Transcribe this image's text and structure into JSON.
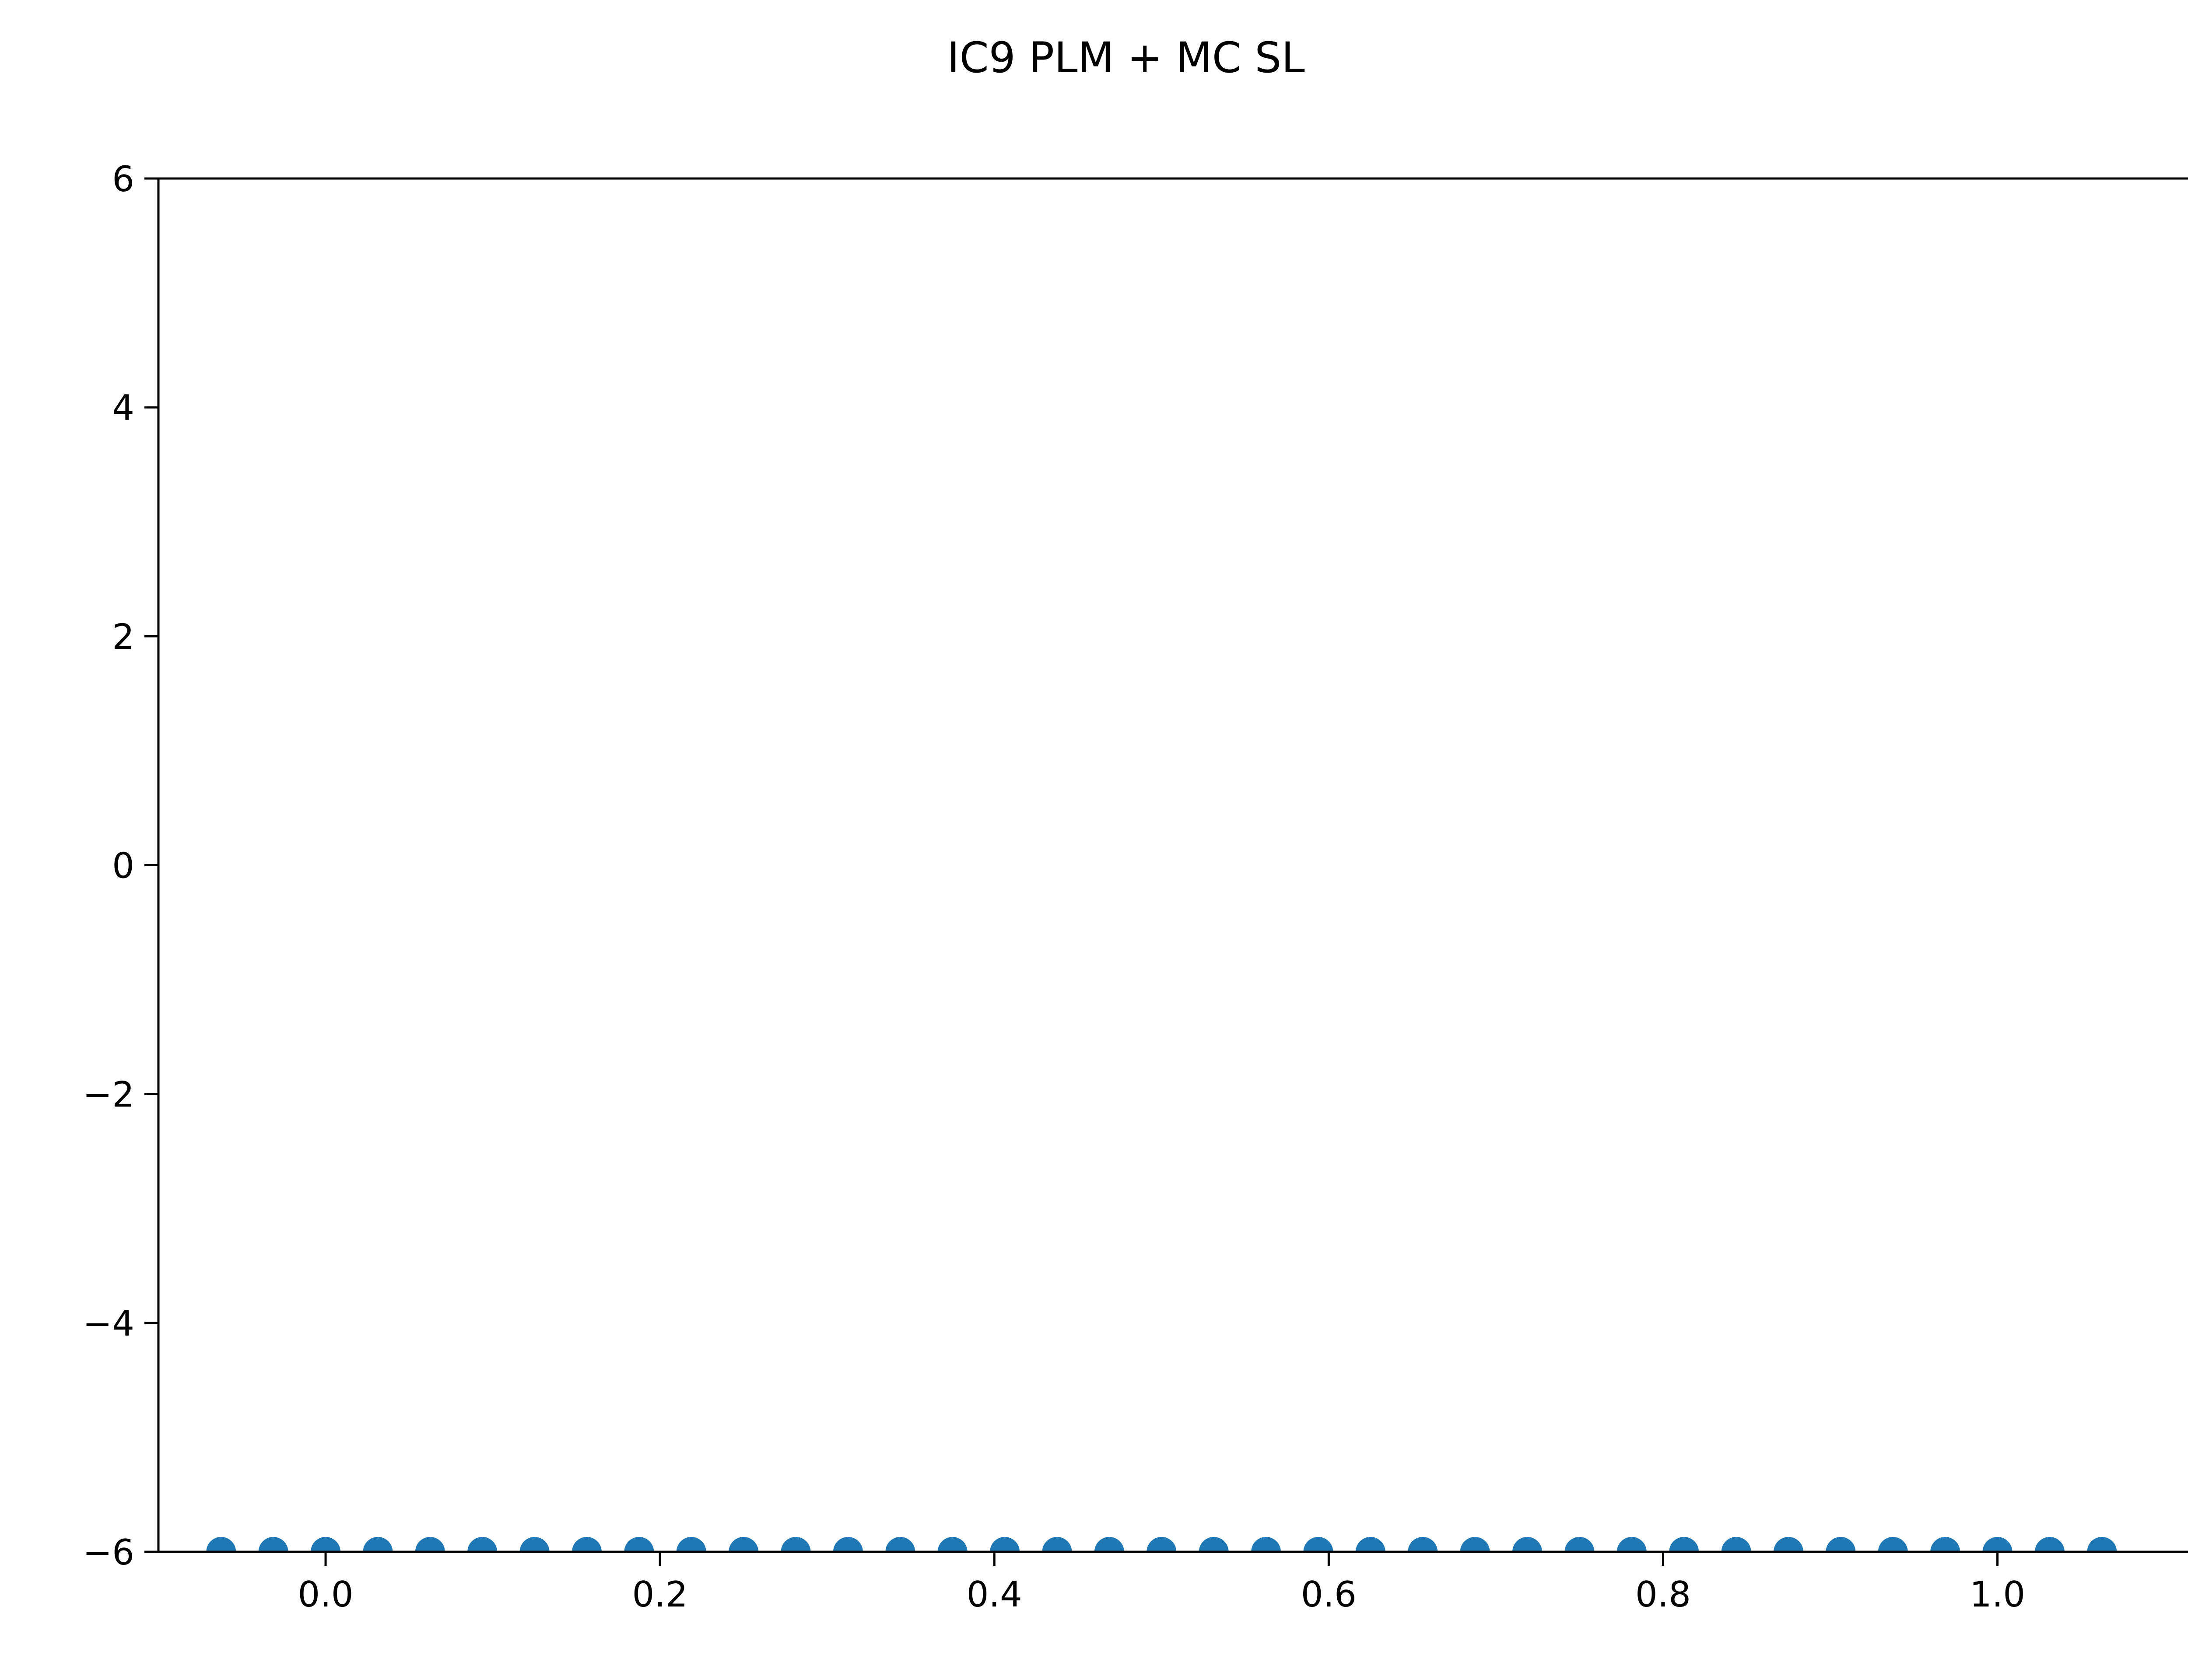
{
  "chart_data": {
    "type": "scatter",
    "title": "IC9 PLM + MC SL",
    "xlabel": "",
    "ylabel": "",
    "xlim": [
      -0.1,
      1.12
    ],
    "ylim": [
      -6,
      6
    ],
    "xticks": [
      0.0,
      0.2,
      0.4,
      0.6,
      0.8,
      1.0
    ],
    "xtick_labels": [
      "0.0",
      "0.2",
      "0.4",
      "0.6",
      "0.8",
      "1.0"
    ],
    "yticks": [
      -6,
      -4,
      -2,
      0,
      2,
      4,
      6
    ],
    "ytick_labels": [
      "−6",
      "−4",
      "−2",
      "0",
      "2",
      "4",
      "6"
    ],
    "grid": false,
    "legend": "none",
    "series": [
      {
        "name": "points",
        "color": "#1f77b4",
        "x": [
          -0.0625,
          -0.03125,
          0.0,
          0.03125,
          0.0625,
          0.09375,
          0.125,
          0.15625,
          0.1875,
          0.21875,
          0.25,
          0.28125,
          0.3125,
          0.34375,
          0.375,
          0.40625,
          0.4375,
          0.46875,
          0.5,
          0.53125,
          0.5625,
          0.59375,
          0.625,
          0.65625,
          0.6875,
          0.71875,
          0.75,
          0.78125,
          0.8125,
          0.84375,
          0.875,
          0.90625,
          0.9375,
          0.96875,
          1.0,
          1.03125,
          1.0625
        ],
        "y": [
          -6,
          -6,
          -6,
          -6,
          -6,
          -6,
          -6,
          -6,
          -6,
          -6,
          -6,
          -6,
          -6,
          -6,
          -6,
          -6,
          -6,
          -6,
          -6,
          -6,
          -6,
          -6,
          -6,
          -6,
          -6,
          -6,
          -6,
          -6,
          -6,
          -6,
          -6,
          -6,
          -6,
          -6,
          -6,
          -6,
          -6
        ]
      }
    ]
  }
}
